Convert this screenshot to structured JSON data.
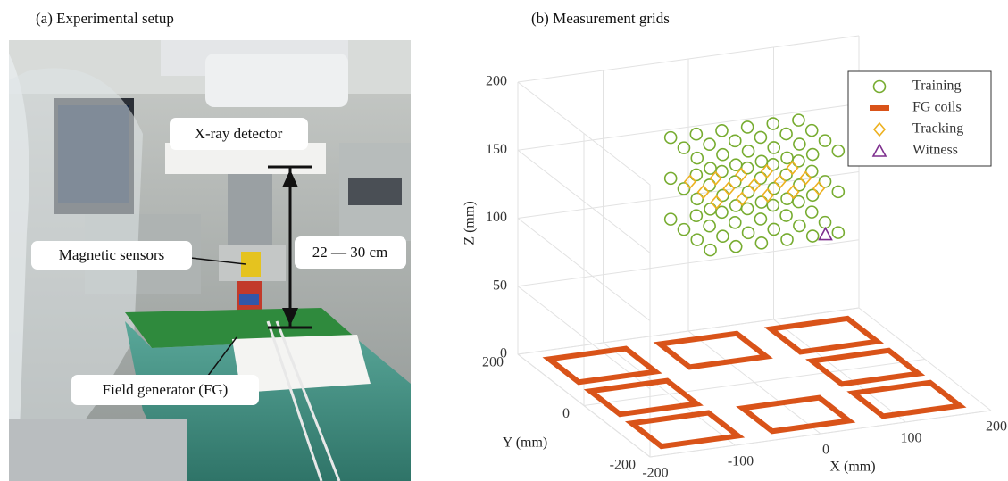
{
  "panel_a": {
    "title": "(a) Experimental setup",
    "labels": [
      "X-ray detector",
      "Magnetic sensors",
      "22 — 30 cm",
      "Field generator (FG)"
    ]
  },
  "chart_data": {
    "type": "scatter3d",
    "title": "(b) Measurement grids",
    "xlabel": "X (mm)",
    "ylabel": "Y (mm)",
    "zlabel": "Z (mm)",
    "xlim": [
      -200,
      200
    ],
    "ylim": [
      -200,
      200
    ],
    "zlim": [
      0,
      200
    ],
    "xticks": [
      -200,
      -100,
      0,
      100,
      200
    ],
    "yticks": [
      -200,
      0,
      200
    ],
    "zticks": [
      0,
      50,
      100,
      150,
      200
    ],
    "grid": true,
    "legend": "upper right",
    "series": [
      {
        "name": "Training",
        "color": "#77ac30",
        "marker": "circle",
        "x": [
          -75,
          -45,
          -15,
          15,
          45,
          75,
          -75,
          -45,
          -15,
          15,
          45,
          75,
          -75,
          -45,
          -15,
          15,
          45,
          75,
          -75,
          -45,
          -15,
          15,
          45,
          75,
          -75,
          -45,
          -15,
          15,
          45,
          75,
          -75,
          -45,
          -15,
          15,
          45,
          75,
          -75,
          -45,
          -15,
          15,
          45,
          75,
          -75,
          -45,
          -15,
          15,
          45,
          75,
          -75,
          -45,
          -15,
          15,
          45,
          75,
          -75,
          -45,
          -15,
          15,
          45,
          75,
          -75,
          -45,
          -15,
          15,
          45,
          75,
          -75,
          -45,
          -15,
          15,
          45,
          75
        ],
        "y": [
          60,
          60,
          60,
          60,
          60,
          60,
          20,
          20,
          20,
          20,
          20,
          20,
          -20,
          -20,
          -20,
          -20,
          -20,
          -20,
          -60,
          -60,
          -60,
          -60,
          -60,
          -60,
          60,
          60,
          60,
          60,
          60,
          60,
          20,
          20,
          20,
          20,
          20,
          20,
          -20,
          -20,
          -20,
          -20,
          -20,
          -20,
          -60,
          -60,
          -60,
          -60,
          -60,
          -60,
          60,
          60,
          60,
          60,
          60,
          60,
          20,
          20,
          20,
          20,
          20,
          20,
          -20,
          -20,
          -20,
          -20,
          -20,
          -20,
          -60,
          -60,
          -60,
          -60,
          -60,
          -60
        ],
        "z": [
          115,
          115,
          115,
          115,
          115,
          115,
          115,
          115,
          115,
          115,
          115,
          115,
          115,
          115,
          115,
          115,
          115,
          115,
          115,
          115,
          115,
          115,
          115,
          115,
          145,
          145,
          145,
          145,
          145,
          145,
          145,
          145,
          145,
          145,
          145,
          145,
          145,
          145,
          145,
          145,
          145,
          145,
          145,
          145,
          145,
          145,
          145,
          145,
          175,
          175,
          175,
          175,
          175,
          175,
          175,
          175,
          175,
          175,
          175,
          175,
          175,
          175,
          175,
          175,
          175,
          175,
          175,
          175,
          175,
          175,
          175,
          175
        ]
      },
      {
        "name": "FG coils",
        "color": "#d95319",
        "marker": "square",
        "size": 90,
        "x": [
          -130,
          0,
          130,
          -130,
          130,
          -130,
          0,
          130
        ],
        "y": [
          125,
          125,
          125,
          0,
          0,
          -125,
          -125,
          -125
        ],
        "z": [
          0,
          0,
          0,
          0,
          0,
          0,
          0,
          0
        ]
      },
      {
        "name": "Tracking",
        "color": "#edb120",
        "marker": "diamond",
        "x": [
          -60,
          -30,
          0,
          30,
          60,
          -60,
          -30,
          0,
          30,
          60,
          -60,
          -30,
          0,
          30,
          60
        ],
        "y": [
          40,
          40,
          40,
          40,
          40,
          0,
          0,
          0,
          0,
          0,
          -40,
          -40,
          -40,
          -40,
          -40
        ],
        "z": [
          145,
          145,
          145,
          145,
          145,
          145,
          145,
          145,
          145,
          145,
          145,
          145,
          145,
          145,
          145
        ]
      },
      {
        "name": "Witness",
        "color": "#7e2f8e",
        "marker": "triangle",
        "x": [
          60
        ],
        "y": [
          -60
        ],
        "z": [
          115
        ]
      }
    ]
  }
}
